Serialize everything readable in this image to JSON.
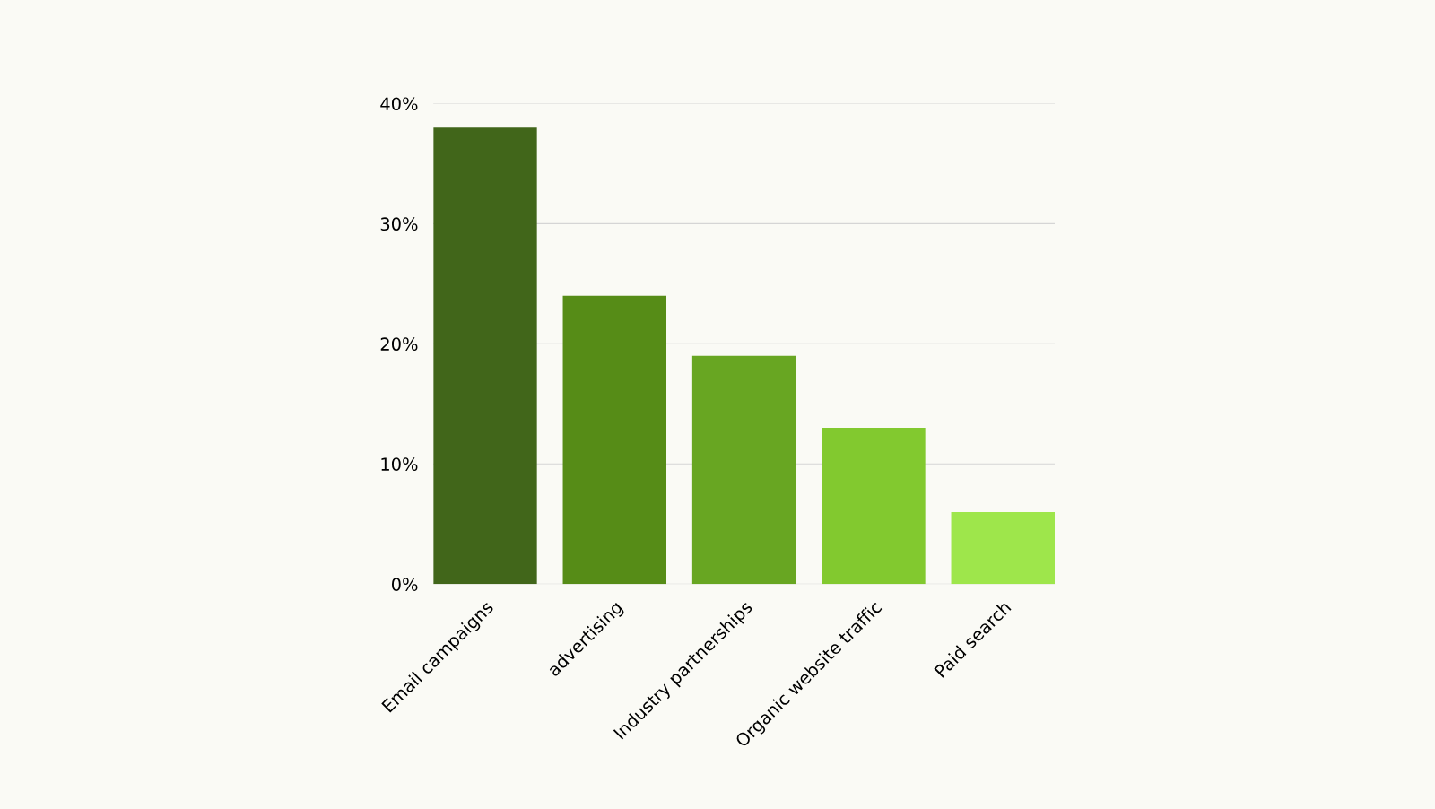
{
  "chart_data": {
    "type": "bar",
    "categories": [
      "Email campaigns",
      "advertising",
      "Industry partnerships",
      "Organic website traffic",
      "Paid search"
    ],
    "values": [
      38,
      24,
      19,
      13,
      6
    ],
    "colors": [
      "#41661a",
      "#568c17",
      "#68a622",
      "#82c92f",
      "#9ee64b"
    ],
    "ylim": [
      0,
      40
    ],
    "yticks": [
      {
        "value": 0,
        "label": "0%"
      },
      {
        "value": 10,
        "label": "10%"
      },
      {
        "value": 20,
        "label": "20%"
      },
      {
        "value": 30,
        "label": "30%"
      },
      {
        "value": 40,
        "label": "40%"
      }
    ],
    "grid": "y"
  }
}
